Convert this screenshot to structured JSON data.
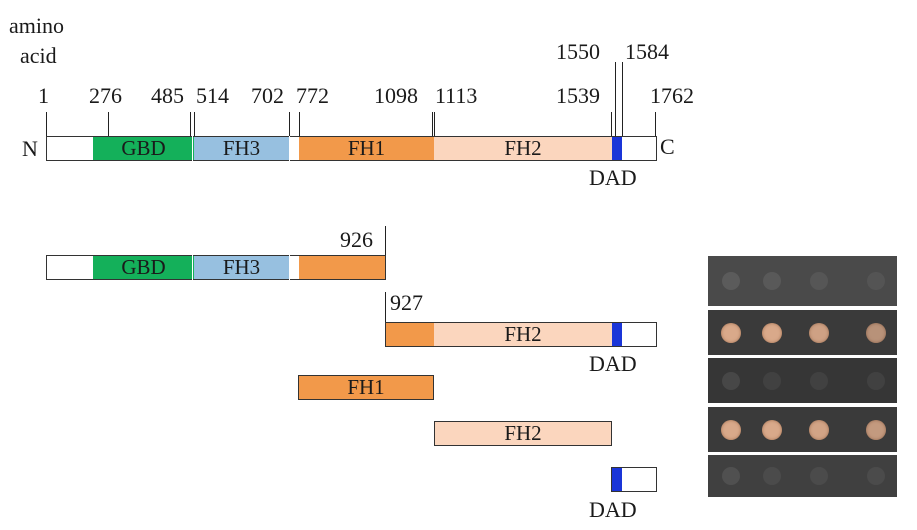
{
  "header": {
    "line1": "amino",
    "line2": "acid"
  },
  "terminals": {
    "n": "N",
    "c": "C"
  },
  "positions": {
    "p1": "1",
    "p276": "276",
    "p485": "485",
    "p514": "514",
    "p702": "702",
    "p772": "772",
    "p1098": "1098",
    "p1113": "1113",
    "p1539": "1539",
    "p1550": "1550",
    "p1584": "1584",
    "p1762": "1762"
  },
  "domains": {
    "gbd": "GBD",
    "fh3": "FH3",
    "fh1": "FH1",
    "fh2": "FH2",
    "dad": "DAD"
  },
  "constructs": {
    "n_end": "926",
    "c_start": "927"
  },
  "colors": {
    "gbd": "#14b05a",
    "fh3": "#97c0e0",
    "fh1": "#f2994a",
    "fh2": "#fbd6be",
    "dad": "#1a35d8",
    "photo_bg": "#3d3d3d",
    "colony": "#d9a98a"
  },
  "growth_panels": [
    {
      "colonies": [
        0.15,
        0.1,
        0.05,
        0.0
      ]
    },
    {
      "colonies": [
        1.0,
        1.0,
        0.85,
        0.55
      ]
    },
    {
      "colonies": [
        0.1,
        0.0,
        0.0,
        0.0
      ]
    },
    {
      "colonies": [
        1.0,
        1.0,
        0.9,
        0.7
      ]
    },
    {
      "colonies": [
        0.1,
        0.0,
        0.0,
        0.0
      ]
    }
  ]
}
